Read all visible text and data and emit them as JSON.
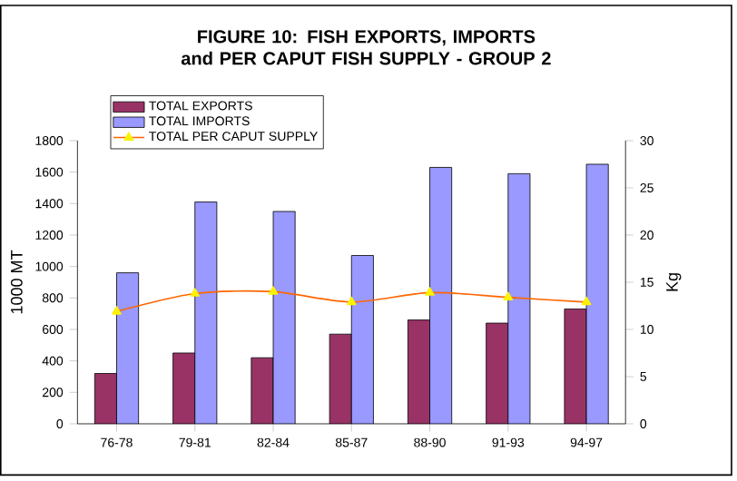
{
  "chart_data": {
    "type": "bar",
    "title": "FIGURE 10: FISH EXPORTS, IMPORTS and PER CAPUT FISH SUPPLY - GROUP 2",
    "ylabel": "1000 MT",
    "y2label": "Kg",
    "categories": [
      "76-78",
      "79-81",
      "82-84",
      "85-87",
      "88-90",
      "91-93",
      "94-97"
    ],
    "series": [
      {
        "name": "TOTAL EXPORTS",
        "color": "#993366",
        "values": [
          320,
          450,
          420,
          570,
          660,
          640,
          730
        ]
      },
      {
        "name": "TOTAL IMPORTS",
        "color": "#9999ff",
        "values": [
          960,
          1410,
          1350,
          1070,
          1630,
          1590,
          1650
        ]
      },
      {
        "name": "TOTAL PER CAPUT SUPPLY",
        "type": "line",
        "axis": "y2",
        "color": "#ff6600",
        "marker": "triangle",
        "values": [
          11.9,
          13.8,
          14.0,
          12.9,
          13.9,
          13.4,
          12.9
        ]
      }
    ],
    "ylim": [
      0,
      1800
    ],
    "yticks": [
      0,
      200,
      400,
      600,
      800,
      1000,
      1200,
      1400,
      1600,
      1800
    ],
    "y2lim": [
      0,
      30
    ],
    "y2ticks": [
      0,
      5,
      10,
      15,
      20,
      25,
      30
    ],
    "grid": false,
    "legend": "top left"
  }
}
